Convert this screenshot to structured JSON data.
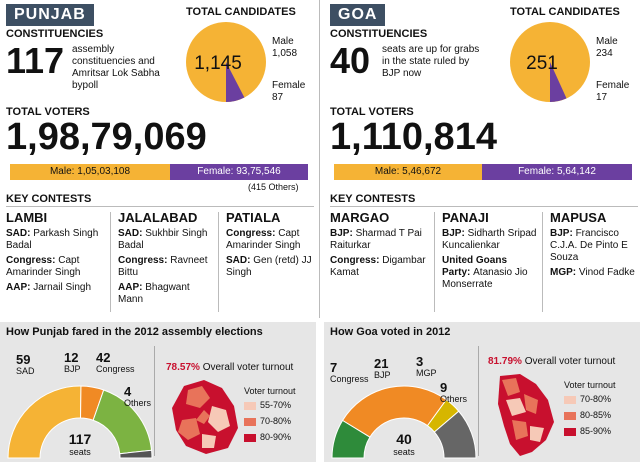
{
  "punjab": {
    "name": "PUNJAB",
    "constituencies_label": "CONSTITUENCIES",
    "constituencies_count": "117",
    "constituencies_text": "assembly constituencies and Amritsar Lok Sabha bypoll",
    "total_candidates_label": "TOTAL CANDIDATES",
    "total_voters_label": "TOTAL VOTERS",
    "total_voters": "1,98,79,069",
    "male_voters_text": "Male: 1,05,03,108",
    "female_voters_text": "Female: 93,75,546",
    "others_text": "(415 Others)",
    "key_contests_label": "KEY CONTESTS",
    "contests": [
      {
        "name": "LAMBI",
        "lines": [
          {
            "party": "SAD:",
            "cand": "Parkash Singh Badal"
          },
          {
            "party": "Congress:",
            "cand": "Capt Amarinder Singh"
          },
          {
            "party": "AAP:",
            "cand": "Jarnail Singh"
          }
        ]
      },
      {
        "name": "JALALABAD",
        "lines": [
          {
            "party": "SAD:",
            "cand": "Sukhbir Singh Badal"
          },
          {
            "party": "Congress:",
            "cand": "Ravneet Bittu"
          },
          {
            "party": "AAP:",
            "cand": "Bhagwant Mann"
          }
        ]
      },
      {
        "name": "PATIALA",
        "lines": [
          {
            "party": "Congress:",
            "cand": "Capt Amarinder Singh"
          },
          {
            "party": "SAD:",
            "cand": "Gen (retd) JJ Singh"
          }
        ]
      }
    ],
    "fared_title": "How Punjab fared in the 2012 assembly elections",
    "turnout_pct": "78.57%",
    "turnout_label": "Overall voter turnout",
    "legend_title": "Voter turnout",
    "legend": [
      {
        "label": "55-70%",
        "color": "#f6c9b7"
      },
      {
        "label": "70-80%",
        "color": "#e8735a"
      },
      {
        "label": "80-90%",
        "color": "#c8102e"
      }
    ],
    "seats_total": "117",
    "seats_word": "seats"
  },
  "goa": {
    "name": "GOA",
    "constituencies_label": "CONSTITUENCIES",
    "constituencies_count": "40",
    "constituencies_text": "seats are up for grabs in the state ruled by BJP now",
    "total_candidates_label": "TOTAL CANDIDATES",
    "total_voters_label": "TOTAL VOTERS",
    "total_voters": "1,110,814",
    "male_voters_text": "Male: 5,46,672",
    "female_voters_text": "Female: 5,64,142",
    "key_contests_label": "KEY CONTESTS",
    "contests": [
      {
        "name": "MARGAO",
        "lines": [
          {
            "party": "BJP:",
            "cand": "Sharmad T Pai Raiturkar"
          },
          {
            "party": "Congress:",
            "cand": "Digambar Kamat"
          }
        ]
      },
      {
        "name": "PANAJI",
        "lines": [
          {
            "party": "BJP:",
            "cand": "Sidharth Sripad Kuncalienkar"
          },
          {
            "party": "United Goans Party:",
            "cand": "Atanasio Jio Monserrate"
          }
        ]
      },
      {
        "name": "MAPUSA",
        "lines": [
          {
            "party": "BJP:",
            "cand": "Francisco C.J.A. De Pinto E Souza"
          },
          {
            "party": "MGP:",
            "cand": "Vinod Fadke"
          }
        ]
      }
    ],
    "voted_title": "How Goa voted in 2012",
    "turnout_pct": "81.79%",
    "turnout_label": "Overall voter turnout",
    "legend_title": "Voter turnout",
    "legend": [
      {
        "label": "70-80%",
        "color": "#f6c9b7"
      },
      {
        "label": "80-85%",
        "color": "#e8735a"
      },
      {
        "label": "85-90%",
        "color": "#c8102e"
      }
    ],
    "seats_total": "40",
    "seats_word": "seats"
  },
  "chart_data": [
    {
      "type": "pie",
      "title": "TOTAL CANDIDATES",
      "center_label": "1,145",
      "categories": [
        "Male",
        "Female"
      ],
      "values": [
        1058,
        87
      ],
      "colors": [
        "#f5b335",
        "#6b3fa0"
      ]
    },
    {
      "type": "bar",
      "title": "TOTAL VOTERS",
      "categories": [
        "Male",
        "Female"
      ],
      "values": [
        10503108,
        9375546
      ],
      "colors": [
        "#f5b335",
        "#6b3fa0"
      ]
    },
    {
      "type": "pie",
      "title": "How Punjab fared in the 2012 assembly elections",
      "categories": [
        "SAD",
        "BJP",
        "Congress",
        "Others"
      ],
      "values": [
        59,
        12,
        42,
        4
      ],
      "colors": [
        "#f5b335",
        "#f08a24",
        "#7cb342",
        "#555555"
      ]
    },
    {
      "type": "pie",
      "title": "TOTAL CANDIDATES",
      "center_label": "251",
      "categories": [
        "Male",
        "Female"
      ],
      "values": [
        234,
        17
      ],
      "colors": [
        "#f5b335",
        "#6b3fa0"
      ]
    },
    {
      "type": "bar",
      "title": "TOTAL VOTERS",
      "categories": [
        "Male",
        "Female"
      ],
      "values": [
        546672,
        564142
      ],
      "colors": [
        "#f5b335",
        "#6b3fa0"
      ]
    },
    {
      "type": "pie",
      "title": "How Goa voted in 2012",
      "categories": [
        "Congress",
        "BJP",
        "MGP",
        "Others"
      ],
      "values": [
        7,
        21,
        3,
        9
      ],
      "colors": [
        "#2e8b3a",
        "#f08a24",
        "#d6b600",
        "#666666"
      ]
    }
  ]
}
